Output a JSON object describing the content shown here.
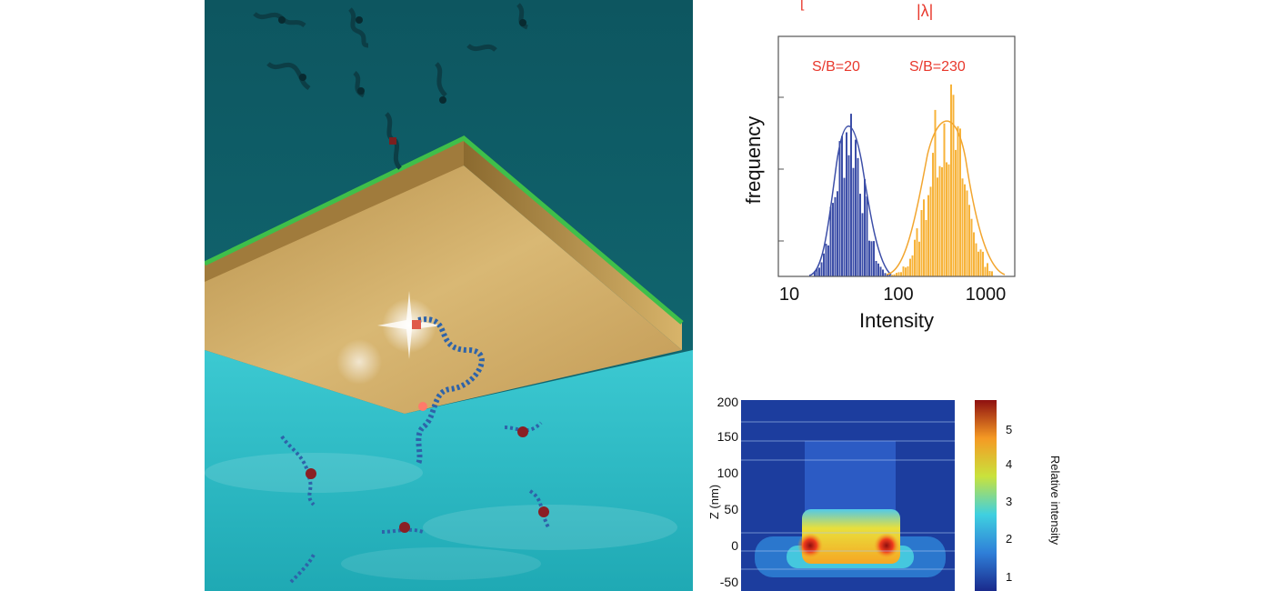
{
  "histogram": {
    "top_labels": {
      "left": "[",
      "right": "|λ|"
    },
    "ylabel": "frequency",
    "xlabel": "Intensity",
    "xticks": [
      "10",
      "100",
      "1000"
    ],
    "annotations": {
      "low": "S/B=20",
      "high": "S/B=230"
    },
    "colors": {
      "low": "#3d4fa8",
      "high": "#f7b33a",
      "annotation": "#e8382c"
    }
  },
  "field_map": {
    "ylabel": "Z (nm)",
    "yticks": [
      "200",
      "150",
      "100",
      "50",
      "0",
      "-50"
    ],
    "colorbar_ticks": [
      "5",
      "4",
      "3",
      "2",
      "1"
    ],
    "colorbar_label": "Relative intensity"
  },
  "illustration": {
    "colors": {
      "top_bg": "#0f5e66",
      "bottom_bg": "#32bcc6",
      "gold": "#c9a25a",
      "edge": "#3fbf4a"
    }
  }
}
